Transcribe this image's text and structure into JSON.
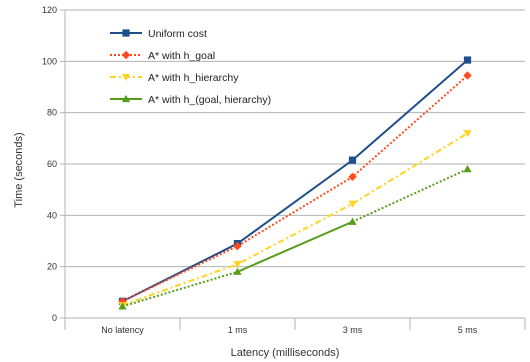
{
  "chart_data": {
    "type": "line",
    "title": "",
    "xlabel": "Latency (milliseconds)",
    "ylabel": "Time (seconds)",
    "categories": [
      "No latency",
      "1 ms",
      "3 ms",
      "5 ms"
    ],
    "ylim": [
      0,
      120
    ],
    "yticks": [
      "0",
      "20",
      "40",
      "60",
      "80",
      "100",
      "120"
    ],
    "grid": true,
    "legend_position": "top-left",
    "series": [
      {
        "name": "Uniform cost",
        "values": [
          6.5,
          29,
          61.5,
          100.5
        ],
        "color": "#1f4e8c",
        "marker": "square",
        "dash": "solid"
      },
      {
        "name": "A* with h_goal",
        "values": [
          6.5,
          28,
          55,
          94.5
        ],
        "color": "#ff4b1f",
        "marker": "diamond",
        "dash": "dotted"
      },
      {
        "name": "A* with h_hierarchy",
        "values": [
          5,
          21,
          44.5,
          72
        ],
        "color": "#ffd320",
        "marker": "triangle-down",
        "dash": "dashdot"
      },
      {
        "name": "A* with h_(goal, hierarchy)",
        "values": [
          4.5,
          18,
          37.5,
          58
        ],
        "color": "#579d1c",
        "marker": "triangle-up",
        "dash": "mixed"
      }
    ]
  }
}
